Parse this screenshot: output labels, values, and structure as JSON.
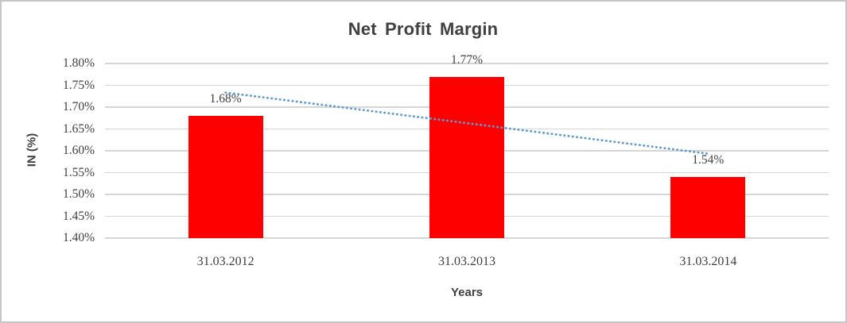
{
  "chart_data": {
    "type": "bar",
    "title": "Net Profit Margin",
    "xlabel": "Years",
    "ylabel": "IN (%)",
    "categories": [
      "31.03.2012",
      "31.03.2013",
      "31.03.2014"
    ],
    "values": [
      1.68,
      1.77,
      1.54
    ],
    "data_labels": [
      "1.68%",
      "1.77%",
      "1.54%"
    ],
    "ylim": [
      1.4,
      1.8
    ],
    "ytick_step": 0.05,
    "ytick_labels": [
      "1.40%",
      "1.45%",
      "1.50%",
      "1.55%",
      "1.60%",
      "1.65%",
      "1.70%",
      "1.75%",
      "1.80%"
    ],
    "gridlines": true,
    "legend": false,
    "trendline": {
      "type": "linear",
      "style": "dotted",
      "start_value": 1.7333,
      "end_value": 1.5933
    },
    "colors": {
      "bar": "#FF0000",
      "trendline": "#5B9BD5",
      "gridline": "#D6D6D6",
      "text": "#404040",
      "frame_border": "#C6C6C6",
      "background": "#FFFFFF"
    }
  }
}
